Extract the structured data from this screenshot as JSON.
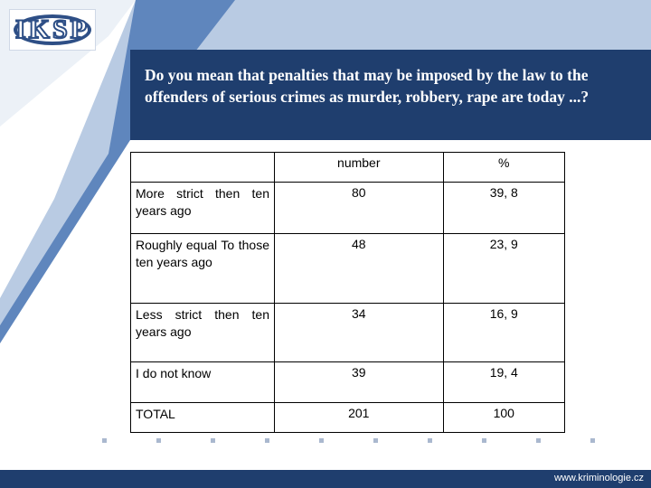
{
  "logo": {
    "text": "IKSP"
  },
  "question": {
    "text": "Do you mean that penalties that  may be imposed by the law to the offenders of serious crimes as murder, robbery, rape are today  ...?"
  },
  "table": {
    "headers": [
      "",
      "number",
      "%"
    ],
    "rows": [
      {
        "label": "More strict then ten years ago",
        "number": "80",
        "percent": "39, 8"
      },
      {
        "label": "Roughly equal To those ten years ago",
        "number": "48",
        "percent": "23, 9"
      },
      {
        "label": "Less strict then ten years ago",
        "number": "34",
        "percent": "16, 9"
      },
      {
        "label": "I do not know",
        "number": "39",
        "percent": "19, 4"
      },
      {
        "label": "TOTAL",
        "number": "201",
        "percent": "100"
      }
    ]
  },
  "footer": {
    "url": "www.kriminologie.cz"
  },
  "colors": {
    "primary": "#1f3e6e",
    "light_band": "#b9cbe3",
    "dot": "#aab8cf"
  }
}
